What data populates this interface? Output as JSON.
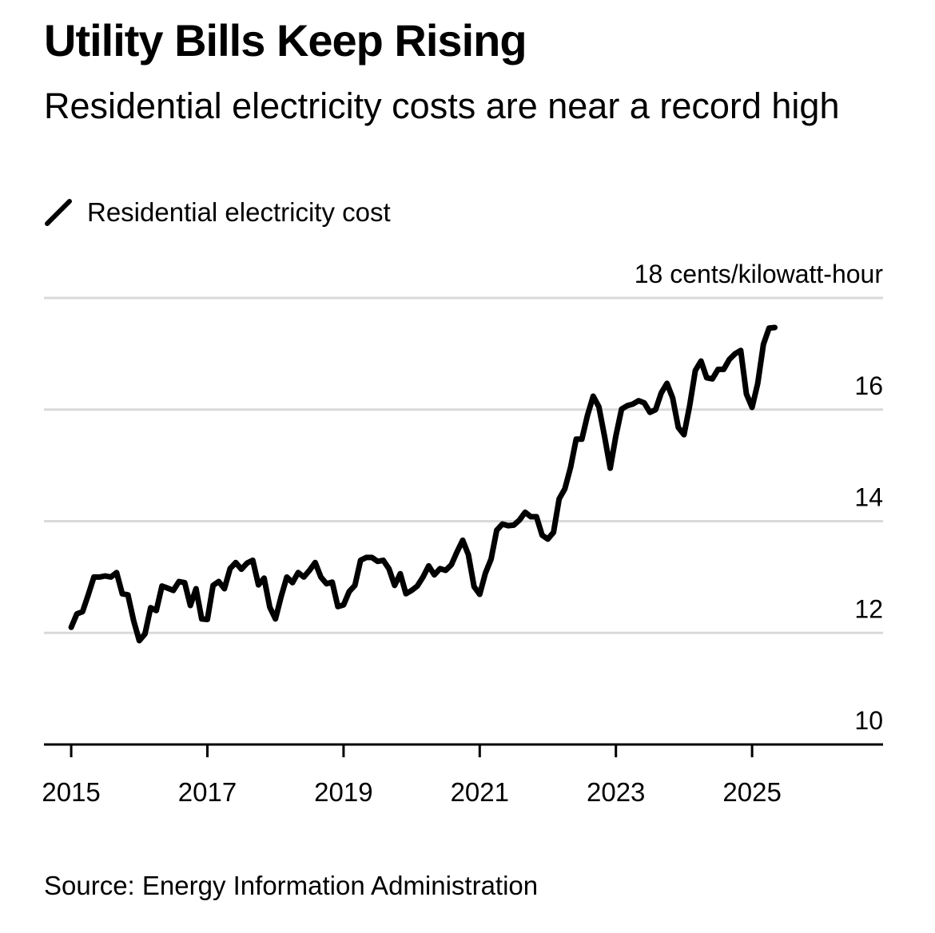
{
  "title": "Utility Bills Keep Rising",
  "subtitle": "Residential electricity costs are near a record high",
  "legend": {
    "label": "Residential electricity cost"
  },
  "source": "Source: Energy Information Administration",
  "colors": {
    "line": "#000000",
    "grid": "#d9d9d9",
    "axis": "#000000",
    "text": "#000000"
  },
  "chart_data": {
    "type": "line",
    "title": "Utility Bills Keep Rising",
    "subtitle": "Residential electricity costs are near a record high",
    "ylabel": "cents/kilowatt-hour",
    "y_top_label": "18 cents/kilowatt-hour",
    "ylim": [
      10,
      18
    ],
    "xlim": [
      2014.6,
      2026.9
    ],
    "yticks": [
      10,
      12,
      14,
      16,
      18
    ],
    "ytick_labels": [
      "10",
      "12",
      "14",
      "16",
      "18 cents/kilowatt-hour"
    ],
    "xticks": [
      2015,
      2017,
      2019,
      2021,
      2023,
      2025
    ],
    "xtick_labels": [
      "2015",
      "2017",
      "2019",
      "2021",
      "2023",
      "2025"
    ],
    "grid": true,
    "legend_position": "top-left",
    "series": [
      {
        "name": "Residential electricity cost",
        "x": [
          2015.0,
          2015.083,
          2015.167,
          2015.25,
          2015.333,
          2015.417,
          2015.5,
          2015.583,
          2015.667,
          2015.75,
          2015.833,
          2015.917,
          2016.0,
          2016.083,
          2016.167,
          2016.25,
          2016.333,
          2016.417,
          2016.5,
          2016.583,
          2016.667,
          2016.75,
          2016.833,
          2016.917,
          2017.0,
          2017.083,
          2017.167,
          2017.25,
          2017.333,
          2017.417,
          2017.5,
          2017.583,
          2017.667,
          2017.75,
          2017.833,
          2017.917,
          2018.0,
          2018.083,
          2018.167,
          2018.25,
          2018.333,
          2018.417,
          2018.5,
          2018.583,
          2018.667,
          2018.75,
          2018.833,
          2018.917,
          2019.0,
          2019.083,
          2019.167,
          2019.25,
          2019.333,
          2019.417,
          2019.5,
          2019.583,
          2019.667,
          2019.75,
          2019.833,
          2019.917,
          2020.0,
          2020.083,
          2020.167,
          2020.25,
          2020.333,
          2020.417,
          2020.5,
          2020.583,
          2020.667,
          2020.75,
          2020.833,
          2020.917,
          2021.0,
          2021.083,
          2021.167,
          2021.25,
          2021.333,
          2021.417,
          2021.5,
          2021.583,
          2021.667,
          2021.75,
          2021.833,
          2021.917,
          2022.0,
          2022.083,
          2022.167,
          2022.25,
          2022.333,
          2022.417,
          2022.5,
          2022.583,
          2022.667,
          2022.75,
          2022.833,
          2022.917,
          2023.0,
          2023.083,
          2023.167,
          2023.25,
          2023.333,
          2023.417,
          2023.5,
          2023.583,
          2023.667,
          2023.75,
          2023.833,
          2023.917,
          2024.0,
          2024.083,
          2024.167,
          2024.25,
          2024.333,
          2024.417,
          2024.5,
          2024.583,
          2024.667,
          2024.75,
          2024.833,
          2024.917,
          2025.0,
          2025.083,
          2025.167,
          2025.25,
          2025.333
        ],
        "values": [
          12.1,
          12.34,
          12.38,
          12.68,
          13.0,
          13.0,
          13.02,
          13.0,
          13.08,
          12.7,
          12.68,
          12.22,
          11.86,
          11.98,
          12.45,
          12.4,
          12.84,
          12.8,
          12.76,
          12.92,
          12.9,
          12.49,
          12.79,
          12.25,
          12.24,
          12.85,
          12.92,
          12.79,
          13.15,
          13.26,
          13.14,
          13.25,
          13.3,
          12.86,
          12.98,
          12.46,
          12.25,
          12.65,
          13.0,
          12.9,
          13.08,
          13.0,
          13.12,
          13.26,
          13.0,
          12.88,
          12.91,
          12.47,
          12.5,
          12.74,
          12.85,
          13.3,
          13.35,
          13.35,
          13.28,
          13.3,
          13.15,
          12.85,
          13.06,
          12.7,
          12.76,
          12.84,
          13.0,
          13.2,
          13.04,
          13.15,
          13.12,
          13.22,
          13.45,
          13.66,
          13.4,
          12.83,
          12.69,
          13.07,
          13.32,
          13.84,
          13.95,
          13.92,
          13.93,
          14.02,
          14.16,
          14.08,
          14.08,
          13.75,
          13.68,
          13.8,
          14.4,
          14.58,
          14.96,
          15.47,
          15.47,
          15.9,
          16.24,
          16.05,
          15.52,
          14.95,
          15.53,
          16.01,
          16.07,
          16.1,
          16.16,
          16.12,
          15.95,
          16.0,
          16.3,
          16.47,
          16.21,
          15.68,
          15.55,
          16.07,
          16.7,
          16.87,
          16.57,
          16.55,
          16.72,
          16.72,
          16.9,
          17.0,
          17.06,
          16.28,
          16.04,
          16.47,
          17.17,
          17.46,
          17.47
        ]
      }
    ]
  }
}
